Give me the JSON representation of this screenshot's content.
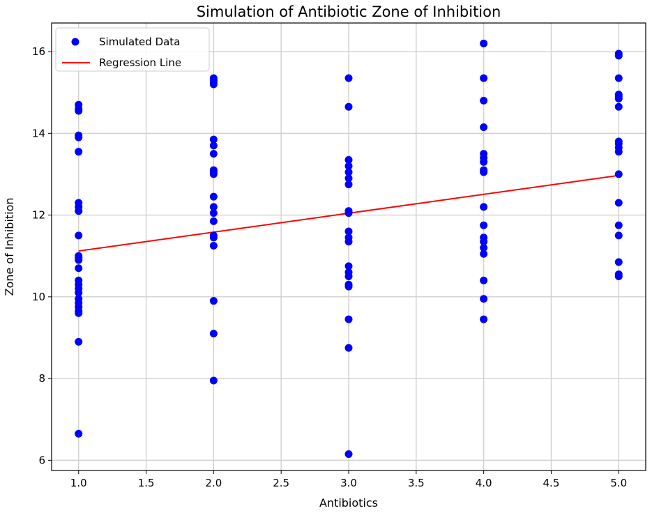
{
  "chart_data": {
    "type": "scatter",
    "title": "Simulation of Antibiotic Zone of Inhibition",
    "xlabel": "Antibiotics",
    "ylabel": "Zone of Inhibition",
    "xlim": [
      0.8,
      5.2
    ],
    "ylim": [
      5.75,
      16.7
    ],
    "xticks": [
      "1.0",
      "1.5",
      "2.0",
      "2.5",
      "3.0",
      "3.5",
      "4.0",
      "4.5",
      "5.0"
    ],
    "yticks": [
      "6",
      "8",
      "10",
      "12",
      "14",
      "16"
    ],
    "grid": true,
    "legend_position": "top-left",
    "series": [
      {
        "name": "Simulated Data",
        "kind": "scatter",
        "color": "#0000ff",
        "points": [
          [
            1,
            14.7
          ],
          [
            1,
            14.6
          ],
          [
            1,
            14.55
          ],
          [
            1,
            13.95
          ],
          [
            1,
            13.9
          ],
          [
            1,
            13.55
          ],
          [
            1,
            12.3
          ],
          [
            1,
            12.2
          ],
          [
            1,
            12.1
          ],
          [
            1,
            11.5
          ],
          [
            1,
            11.0
          ],
          [
            1,
            10.95
          ],
          [
            1,
            10.9
          ],
          [
            1,
            10.7
          ],
          [
            1,
            10.4
          ],
          [
            1,
            10.3
          ],
          [
            1,
            10.2
          ],
          [
            1,
            10.1
          ],
          [
            1,
            9.95
          ],
          [
            1,
            9.85
          ],
          [
            1,
            9.75
          ],
          [
            1,
            9.65
          ],
          [
            1,
            9.6
          ],
          [
            1,
            8.9
          ],
          [
            1,
            6.65
          ],
          [
            2,
            15.35
          ],
          [
            2,
            15.3
          ],
          [
            2,
            15.25
          ],
          [
            2,
            15.2
          ],
          [
            2,
            13.85
          ],
          [
            2,
            13.7
          ],
          [
            2,
            13.5
          ],
          [
            2,
            13.1
          ],
          [
            2,
            13.05
          ],
          [
            2,
            13.0
          ],
          [
            2,
            12.45
          ],
          [
            2,
            12.2
          ],
          [
            2,
            12.05
          ],
          [
            2,
            11.85
          ],
          [
            2,
            11.5
          ],
          [
            2,
            11.45
          ],
          [
            2,
            11.25
          ],
          [
            2,
            9.9
          ],
          [
            2,
            9.1
          ],
          [
            2,
            7.95
          ],
          [
            3,
            15.35
          ],
          [
            3,
            14.65
          ],
          [
            3,
            13.35
          ],
          [
            3,
            13.2
          ],
          [
            3,
            13.05
          ],
          [
            3,
            12.9
          ],
          [
            3,
            12.75
          ],
          [
            3,
            12.1
          ],
          [
            3,
            12.05
          ],
          [
            3,
            11.6
          ],
          [
            3,
            11.45
          ],
          [
            3,
            11.35
          ],
          [
            3,
            10.75
          ],
          [
            3,
            10.6
          ],
          [
            3,
            10.5
          ],
          [
            3,
            10.3
          ],
          [
            3,
            10.25
          ],
          [
            3,
            9.45
          ],
          [
            3,
            8.75
          ],
          [
            3,
            6.15
          ],
          [
            4,
            16.2
          ],
          [
            4,
            15.35
          ],
          [
            4,
            14.8
          ],
          [
            4,
            14.15
          ],
          [
            4,
            13.5
          ],
          [
            4,
            13.4
          ],
          [
            4,
            13.3
          ],
          [
            4,
            13.1
          ],
          [
            4,
            13.05
          ],
          [
            4,
            12.2
          ],
          [
            4,
            11.75
          ],
          [
            4,
            11.45
          ],
          [
            4,
            11.35
          ],
          [
            4,
            11.2
          ],
          [
            4,
            11.05
          ],
          [
            4,
            10.4
          ],
          [
            4,
            9.95
          ],
          [
            4,
            9.45
          ],
          [
            5,
            15.95
          ],
          [
            5,
            15.9
          ],
          [
            5,
            15.35
          ],
          [
            5,
            14.95
          ],
          [
            5,
            14.9
          ],
          [
            5,
            14.85
          ],
          [
            5,
            14.65
          ],
          [
            5,
            13.8
          ],
          [
            5,
            13.75
          ],
          [
            5,
            13.65
          ],
          [
            5,
            13.55
          ],
          [
            5,
            13.0
          ],
          [
            5,
            12.3
          ],
          [
            5,
            11.75
          ],
          [
            5,
            11.5
          ],
          [
            5,
            10.85
          ],
          [
            5,
            10.55
          ],
          [
            5,
            10.5
          ]
        ]
      },
      {
        "name": "Regression Line",
        "kind": "line",
        "color": "#ff0000",
        "points": [
          [
            1,
            11.12
          ],
          [
            5,
            12.97
          ]
        ]
      }
    ]
  }
}
